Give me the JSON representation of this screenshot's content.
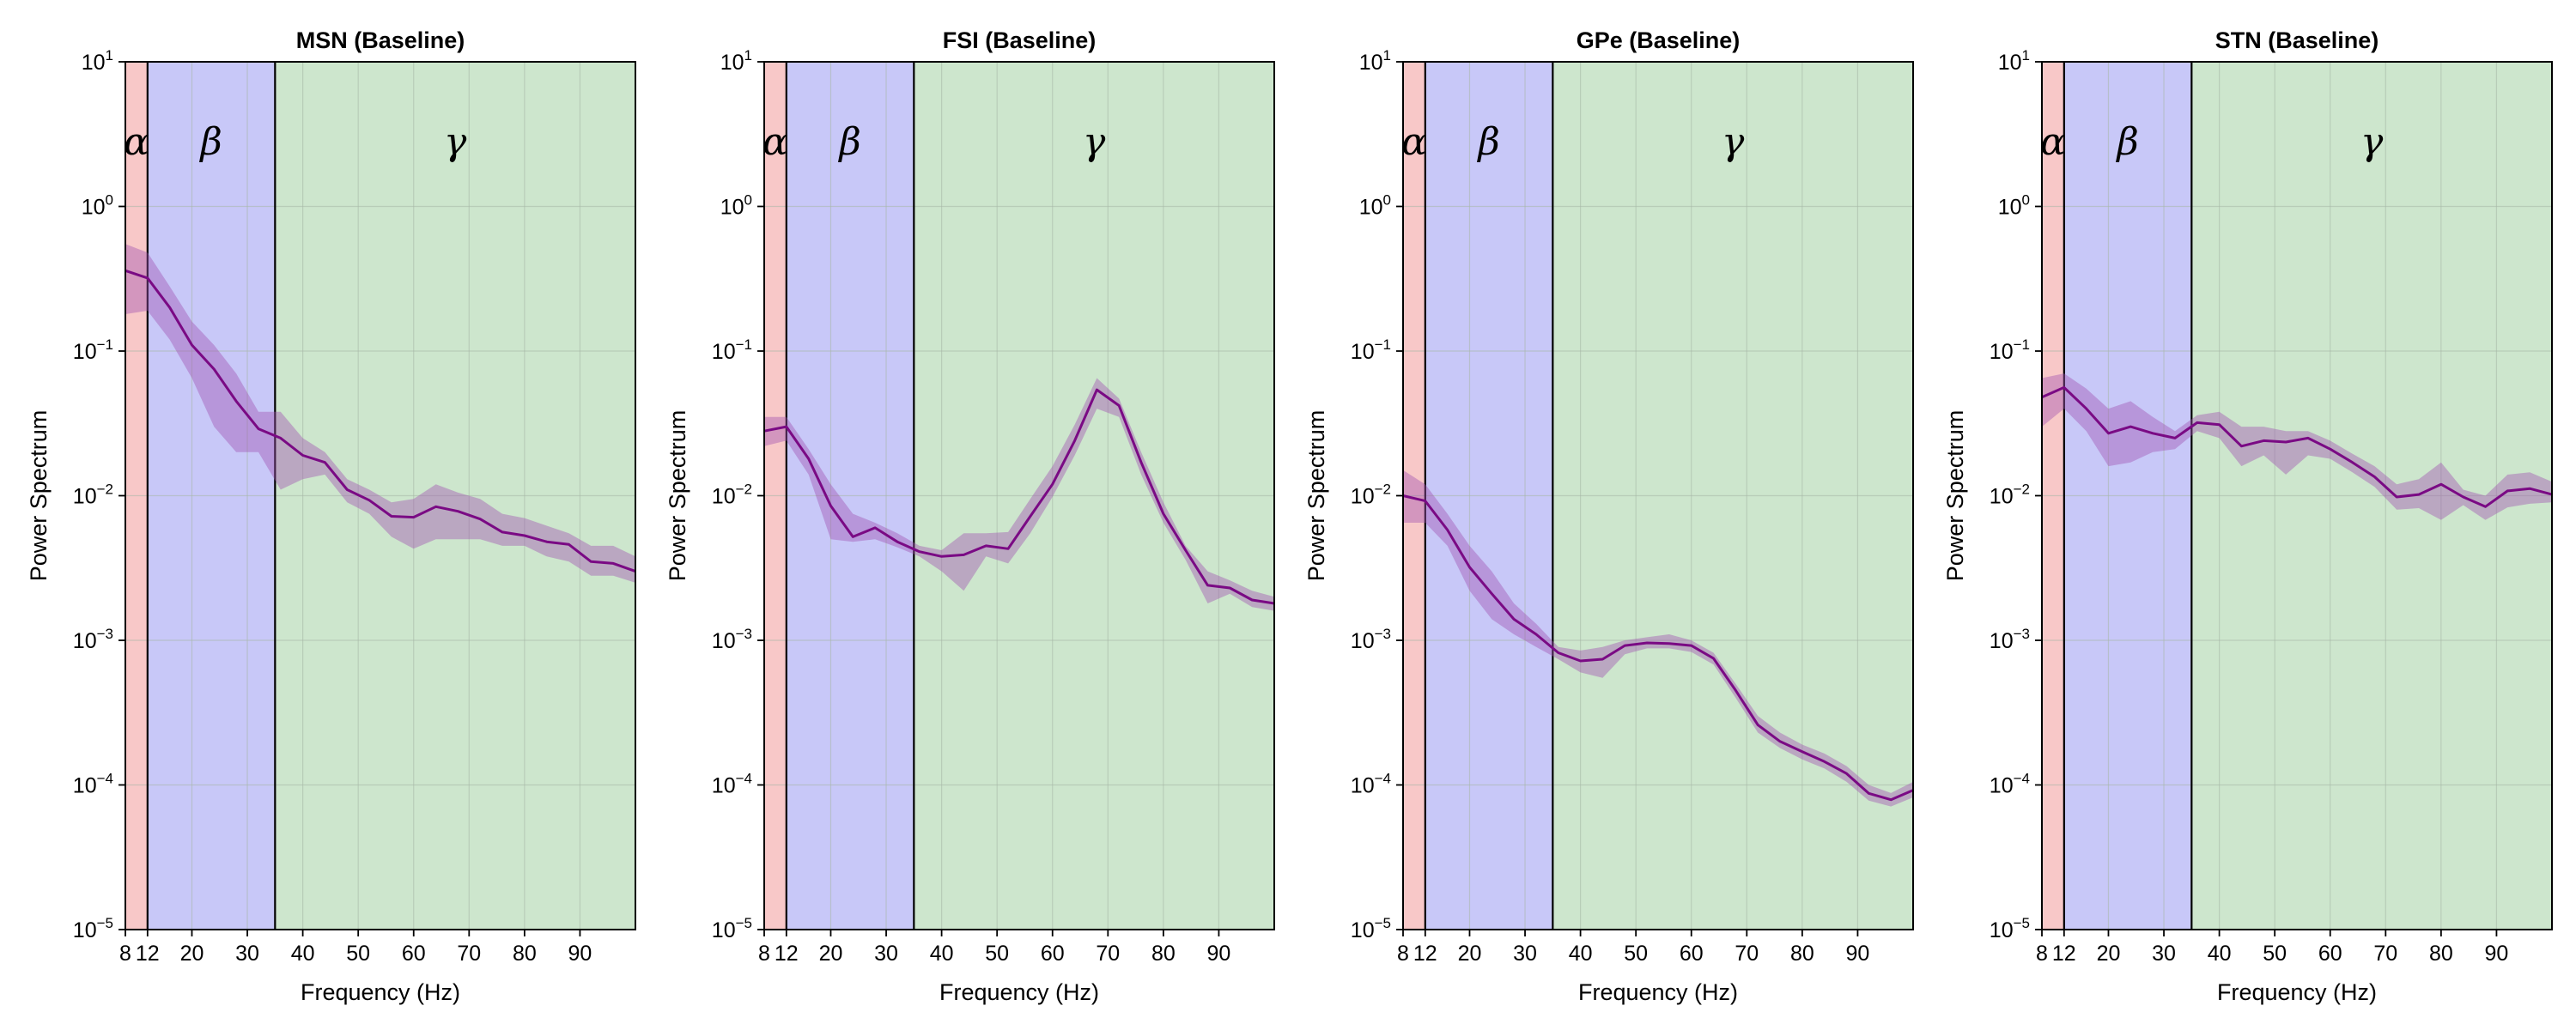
{
  "colors": {
    "alpha_band": "#f8c8c8",
    "beta_band": "#c8c8f8",
    "gamma_band": "#cde6cd",
    "line": "#7a0a84",
    "shade": "#a050b0",
    "grid": "#a8b8a8"
  },
  "chart_data": [
    {
      "type": "line",
      "title": "MSN (Baseline)",
      "xlabel": "Frequency (Hz)",
      "ylabel": "Power Spectrum",
      "yscale": "log",
      "xlim": [
        8,
        100
      ],
      "ylim": [
        1e-05,
        10
      ],
      "xticks": [
        8,
        12,
        20,
        30,
        40,
        50,
        60,
        70,
        80,
        90
      ],
      "xtick_labels": [
        "8",
        "12",
        "20",
        "30",
        "40",
        "50",
        "60",
        "70",
        "80",
        "90"
      ],
      "yticks": [
        1e-05,
        0.0001,
        0.001,
        0.01,
        0.1,
        1,
        10
      ],
      "ytick_exponents": [
        "−5",
        "−4",
        "−3",
        "−2",
        "−1",
        "0",
        "1"
      ],
      "ytick_base": "10",
      "grid": true,
      "bands": [
        {
          "name": "α",
          "range": [
            8,
            12
          ]
        },
        {
          "name": "β",
          "range": [
            12,
            35
          ]
        },
        {
          "name": "γ",
          "range": [
            35,
            100
          ]
        }
      ],
      "x": [
        8,
        12,
        16,
        20,
        24,
        28,
        32,
        36,
        40,
        44,
        48,
        52,
        56,
        60,
        64,
        68,
        72,
        76,
        80,
        84,
        88,
        92,
        96,
        100
      ],
      "mean": [
        0.36,
        0.32,
        0.2,
        0.11,
        0.075,
        0.045,
        0.029,
        0.025,
        0.019,
        0.017,
        0.011,
        0.0093,
        0.0072,
        0.0071,
        0.0084,
        0.0078,
        0.0069,
        0.0056,
        0.0053,
        0.0048,
        0.0046,
        0.0035,
        0.0034,
        0.003
      ],
      "upper": [
        0.55,
        0.48,
        0.28,
        0.16,
        0.11,
        0.07,
        0.038,
        0.038,
        0.025,
        0.02,
        0.013,
        0.011,
        0.009,
        0.0095,
        0.012,
        0.0105,
        0.0095,
        0.0075,
        0.007,
        0.0062,
        0.0055,
        0.0045,
        0.0045,
        0.0038
      ],
      "lower": [
        0.18,
        0.19,
        0.12,
        0.065,
        0.03,
        0.02,
        0.02,
        0.011,
        0.013,
        0.014,
        0.009,
        0.0075,
        0.0052,
        0.0043,
        0.005,
        0.005,
        0.005,
        0.0045,
        0.0045,
        0.0038,
        0.0035,
        0.0028,
        0.0028,
        0.0025
      ]
    },
    {
      "type": "line",
      "title": "FSI (Baseline)",
      "xlabel": "Frequency (Hz)",
      "ylabel": "Power Spectrum",
      "yscale": "log",
      "xlim": [
        8,
        100
      ],
      "ylim": [
        1e-05,
        10
      ],
      "xticks": [
        8,
        12,
        20,
        30,
        40,
        50,
        60,
        70,
        80,
        90
      ],
      "xtick_labels": [
        "8",
        "12",
        "20",
        "30",
        "40",
        "50",
        "60",
        "70",
        "80",
        "90"
      ],
      "yticks": [
        1e-05,
        0.0001,
        0.001,
        0.01,
        0.1,
        1,
        10
      ],
      "ytick_exponents": [
        "−5",
        "−4",
        "−3",
        "−2",
        "−1",
        "0",
        "1"
      ],
      "ytick_base": "10",
      "grid": true,
      "bands": [
        {
          "name": "α",
          "range": [
            8,
            12
          ]
        },
        {
          "name": "β",
          "range": [
            12,
            35
          ]
        },
        {
          "name": "γ",
          "range": [
            35,
            100
          ]
        }
      ],
      "x": [
        8,
        12,
        16,
        20,
        24,
        28,
        32,
        36,
        40,
        44,
        48,
        52,
        56,
        60,
        64,
        68,
        72,
        76,
        80,
        84,
        88,
        92,
        96,
        100
      ],
      "mean": [
        0.028,
        0.03,
        0.018,
        0.0085,
        0.0052,
        0.006,
        0.0048,
        0.0041,
        0.0038,
        0.0039,
        0.0045,
        0.0043,
        0.0072,
        0.012,
        0.024,
        0.054,
        0.042,
        0.017,
        0.0075,
        0.0042,
        0.0024,
        0.0023,
        0.0019,
        0.0018
      ],
      "upper": [
        0.035,
        0.035,
        0.021,
        0.012,
        0.0075,
        0.0065,
        0.0055,
        0.0045,
        0.0042,
        0.0055,
        0.0055,
        0.0056,
        0.0095,
        0.016,
        0.031,
        0.065,
        0.047,
        0.02,
        0.009,
        0.0045,
        0.003,
        0.0026,
        0.0022,
        0.002
      ],
      "lower": [
        0.022,
        0.024,
        0.014,
        0.005,
        0.0048,
        0.005,
        0.0044,
        0.0038,
        0.003,
        0.0022,
        0.0038,
        0.0034,
        0.0055,
        0.0098,
        0.019,
        0.04,
        0.035,
        0.014,
        0.0065,
        0.0036,
        0.0018,
        0.0021,
        0.0017,
        0.0016
      ]
    },
    {
      "type": "line",
      "title": "GPe (Baseline)",
      "xlabel": "Frequency (Hz)",
      "ylabel": "Power Spectrum",
      "yscale": "log",
      "xlim": [
        8,
        100
      ],
      "ylim": [
        1e-05,
        10
      ],
      "xticks": [
        8,
        12,
        20,
        30,
        40,
        50,
        60,
        70,
        80,
        90
      ],
      "xtick_labels": [
        "8",
        "12",
        "20",
        "30",
        "40",
        "50",
        "60",
        "70",
        "80",
        "90"
      ],
      "yticks": [
        1e-05,
        0.0001,
        0.001,
        0.01,
        0.1,
        1,
        10
      ],
      "ytick_exponents": [
        "−5",
        "−4",
        "−3",
        "−2",
        "−1",
        "0",
        "1"
      ],
      "ytick_base": "10",
      "grid": true,
      "bands": [
        {
          "name": "α",
          "range": [
            8,
            12
          ]
        },
        {
          "name": "β",
          "range": [
            12,
            35
          ]
        },
        {
          "name": "γ",
          "range": [
            35,
            100
          ]
        }
      ],
      "x": [
        8,
        12,
        16,
        20,
        24,
        28,
        32,
        36,
        40,
        44,
        48,
        52,
        56,
        60,
        64,
        68,
        72,
        76,
        80,
        84,
        88,
        92,
        96,
        100
      ],
      "mean": [
        0.01,
        0.0092,
        0.0058,
        0.0032,
        0.0021,
        0.0014,
        0.0011,
        0.00082,
        0.00072,
        0.00074,
        0.00092,
        0.00096,
        0.00095,
        0.00092,
        0.00075,
        0.00045,
        0.00026,
        0.0002,
        0.00017,
        0.000145,
        0.00012,
        8.75e-05,
        7.9e-05,
        9.2e-05
      ],
      "upper": [
        0.015,
        0.012,
        0.0075,
        0.0045,
        0.003,
        0.0018,
        0.0013,
        0.0009,
        0.00085,
        0.0009,
        0.001,
        0.00105,
        0.0011,
        0.001,
        0.00082,
        0.0005,
        0.0003,
        0.00023,
        0.00019,
        0.000165,
        0.000135,
        0.0001,
        8.8e-05,
        0.000105
      ],
      "lower": [
        0.0065,
        0.0065,
        0.0045,
        0.0022,
        0.0014,
        0.0011,
        0.0009,
        0.00074,
        0.0006,
        0.00055,
        0.0008,
        0.00088,
        0.00088,
        0.00083,
        0.00068,
        0.0004,
        0.00023,
        0.00018,
        0.00015,
        0.00013,
        0.000105,
        7.8e-05,
        7.1e-05,
        8.2e-05
      ]
    },
    {
      "type": "line",
      "title": "STN (Baseline)",
      "xlabel": "Frequency (Hz)",
      "ylabel": "Power Spectrum",
      "yscale": "log",
      "xlim": [
        8,
        100
      ],
      "ylim": [
        1e-05,
        10
      ],
      "xticks": [
        8,
        12,
        20,
        30,
        40,
        50,
        60,
        70,
        80,
        90
      ],
      "xtick_labels": [
        "8",
        "12",
        "20",
        "30",
        "40",
        "50",
        "60",
        "70",
        "80",
        "90"
      ],
      "yticks": [
        1e-05,
        0.0001,
        0.001,
        0.01,
        0.1,
        1,
        10
      ],
      "ytick_exponents": [
        "−5",
        "−4",
        "−3",
        "−2",
        "−1",
        "0",
        "1"
      ],
      "ytick_base": "10",
      "grid": true,
      "bands": [
        {
          "name": "α",
          "range": [
            8,
            12
          ]
        },
        {
          "name": "β",
          "range": [
            12,
            35
          ]
        },
        {
          "name": "γ",
          "range": [
            35,
            100
          ]
        }
      ],
      "x": [
        8,
        12,
        16,
        20,
        24,
        28,
        32,
        36,
        40,
        44,
        48,
        52,
        56,
        60,
        64,
        68,
        72,
        76,
        80,
        84,
        88,
        92,
        96,
        100
      ],
      "mean": [
        0.048,
        0.056,
        0.04,
        0.027,
        0.03,
        0.027,
        0.025,
        0.032,
        0.031,
        0.022,
        0.024,
        0.0235,
        0.025,
        0.021,
        0.017,
        0.0135,
        0.0098,
        0.0102,
        0.012,
        0.0098,
        0.0084,
        0.0108,
        0.0112,
        0.0102
      ],
      "upper": [
        0.065,
        0.07,
        0.055,
        0.04,
        0.045,
        0.035,
        0.028,
        0.036,
        0.038,
        0.03,
        0.03,
        0.028,
        0.028,
        0.024,
        0.0195,
        0.016,
        0.012,
        0.013,
        0.017,
        0.011,
        0.01,
        0.014,
        0.0145,
        0.0125
      ],
      "lower": [
        0.03,
        0.04,
        0.028,
        0.016,
        0.017,
        0.02,
        0.021,
        0.028,
        0.025,
        0.016,
        0.019,
        0.014,
        0.019,
        0.018,
        0.0145,
        0.0115,
        0.008,
        0.0082,
        0.0068,
        0.0086,
        0.0068,
        0.0083,
        0.0088,
        0.009
      ]
    }
  ]
}
